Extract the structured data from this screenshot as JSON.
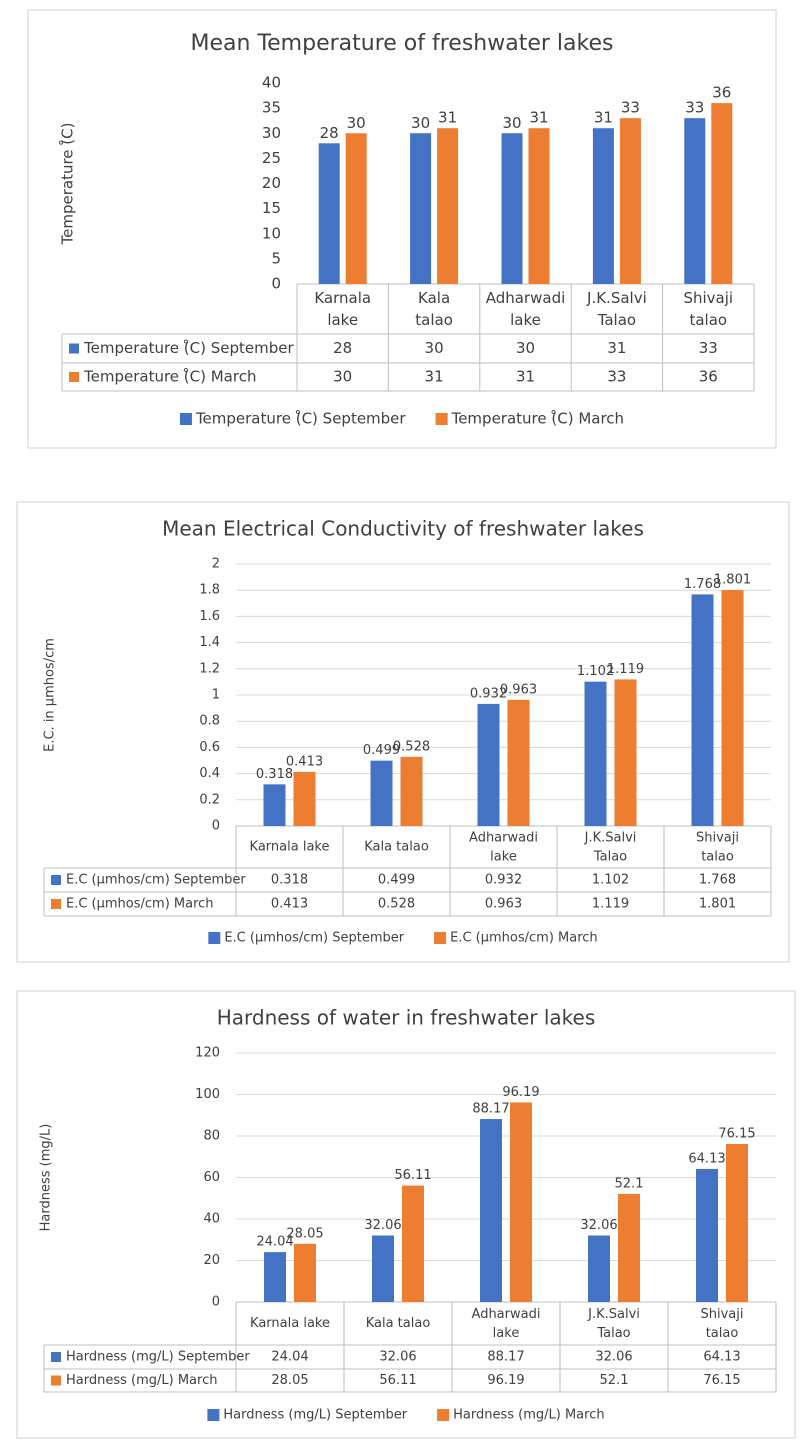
{
  "chart_data": [
    {
      "type": "bar",
      "title": "Mean Temperature of freshwater lakes",
      "y_label": "Temperature (̊C)",
      "categories": [
        "Karnala lake",
        "Kala talao",
        "Adharwadi lake",
        "J.K.Salvi Talao",
        "Shivaji talao"
      ],
      "series": [
        {
          "name": "Temperature (̊C) September",
          "color": "#4472c4",
          "values": [
            28,
            30,
            30,
            31,
            33
          ]
        },
        {
          "name": "Temperature (̊C) March",
          "color": "#ed7d31",
          "values": [
            30,
            31,
            31,
            33,
            36
          ]
        }
      ],
      "ylim": [
        0,
        40
      ],
      "yticks": [
        0,
        5,
        10,
        15,
        20,
        25,
        30,
        35,
        40
      ],
      "grid": false
    },
    {
      "type": "bar",
      "title": "Mean Electrical Conductivity of freshwater lakes",
      "y_label": "E.C. in µmhos/cm",
      "categories": [
        "Karnala lake",
        "Kala talao",
        "Adharwadi lake",
        "J.K.Salvi Talao",
        "Shivaji talao"
      ],
      "series": [
        {
          "name": "E.C (µmhos/cm) September",
          "color": "#4472c4",
          "values": [
            0.318,
            0.499,
            0.932,
            1.102,
            1.768
          ]
        },
        {
          "name": "E.C (µmhos/cm) March",
          "color": "#ed7d31",
          "values": [
            0.413,
            0.528,
            0.963,
            1.119,
            1.801
          ]
        }
      ],
      "ylim": [
        0,
        2
      ],
      "yticks": [
        0,
        0.2,
        0.4,
        0.6,
        0.8,
        1,
        1.2,
        1.4,
        1.6,
        1.8,
        2
      ],
      "grid": true
    },
    {
      "type": "bar",
      "title": "Hardness of water in freshwater lakes",
      "y_label": "Hardness (mg/L)",
      "categories": [
        "Karnala lake",
        "Kala talao",
        "Adharwadi lake",
        "J.K.Salvi Talao",
        "Shivaji talao"
      ],
      "series": [
        {
          "name": "Hardness (mg/L) September",
          "color": "#4472c4",
          "values": [
            24.04,
            32.06,
            88.17,
            32.06,
            64.13
          ]
        },
        {
          "name": "Hardness (mg/L) March",
          "color": "#ed7d31",
          "values": [
            28.05,
            56.11,
            96.19,
            52.1,
            76.15
          ]
        }
      ],
      "ylim": [
        0,
        120
      ],
      "yticks": [
        0,
        20,
        40,
        60,
        80,
        100,
        120
      ],
      "grid": true
    }
  ]
}
